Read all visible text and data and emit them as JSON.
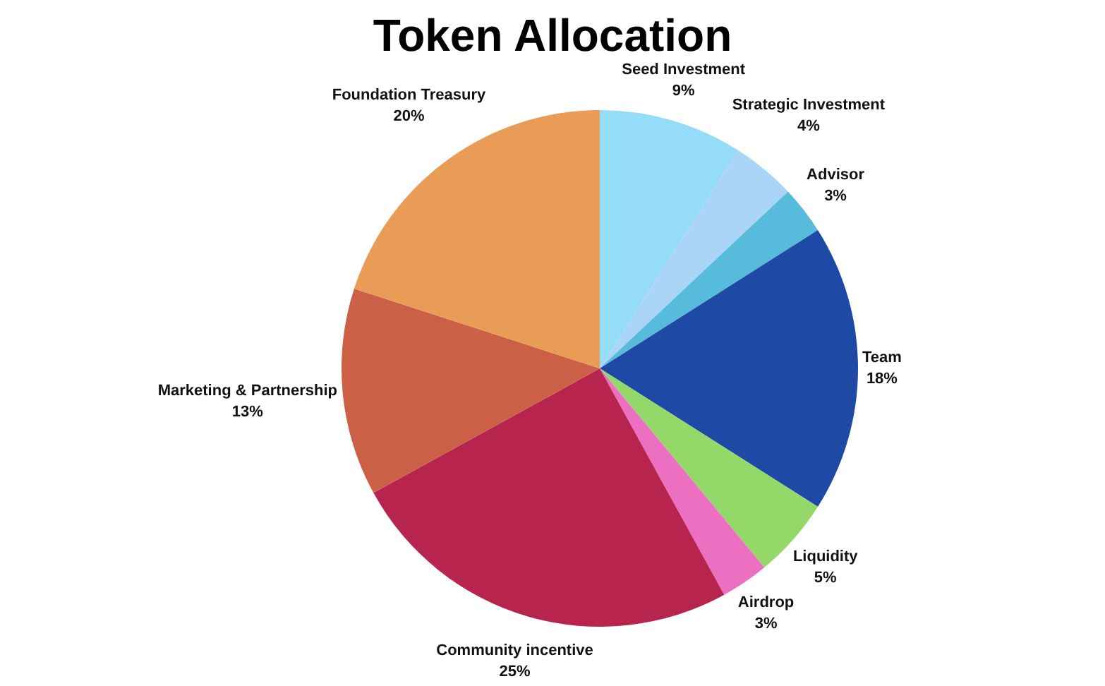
{
  "chart_data": {
    "type": "pie",
    "title": "Token Allocation",
    "categories": [
      "Seed Investment",
      "Strategic Investment",
      "Advisor",
      "Team",
      "Liquidity",
      "Airdrop",
      "Community incentive",
      "Marketing & Partnership",
      "Foundation Treasury"
    ],
    "values": [
      9,
      4,
      3,
      18,
      5,
      3,
      25,
      13,
      20
    ],
    "value_labels": [
      "9%",
      "4%",
      "3%",
      "18%",
      "5%",
      "3%",
      "25%",
      "13%",
      "20%"
    ],
    "colors": [
      "#95dcf8",
      "#aad5f7",
      "#57bcdb",
      "#1e4aa6",
      "#94d86a",
      "#ec6fc2",
      "#b7244d",
      "#cb6046",
      "#e99c56"
    ]
  }
}
